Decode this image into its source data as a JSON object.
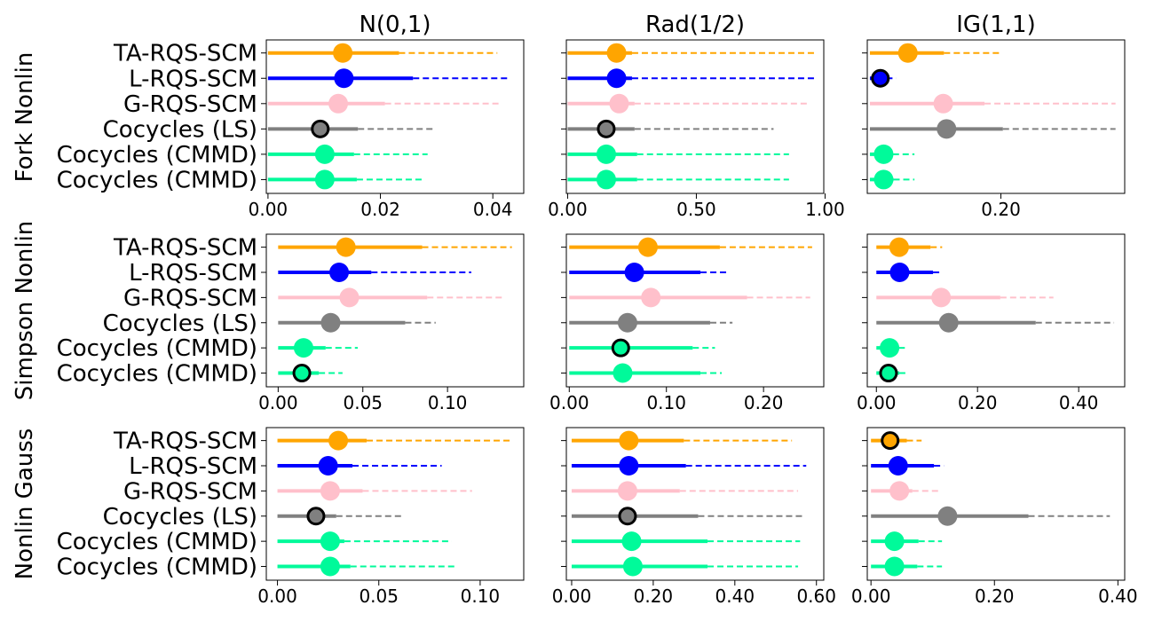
{
  "chart_data": {
    "type": "forest",
    "methods": [
      "TA-RQS-SCM",
      "L-RQS-SCM",
      "G-RQS-SCM",
      "Cocycles (LS)",
      "Cocycles (CMMD)",
      "Cocycles (CMMD)"
    ],
    "method_colors": [
      "#FFA500",
      "#0000FF",
      "#FFC0CB",
      "#808080",
      "#00FA9A",
      "#00FA9A"
    ],
    "columns": [
      "N(0,1)",
      "Rad(1/2)",
      "IG(1,1)"
    ],
    "rows": [
      {
        "label": "Fork Nonlin",
        "panels": [
          {
            "xlim": [
              -0.0003,
              0.0455
            ],
            "ticks": [
              0.0,
              0.02,
              0.04
            ],
            "tick_labels": [
              "0.00",
              "0.02",
              "0.04"
            ],
            "points": [
              {
                "med": 0.0133,
                "q75": 0.0233,
                "max": 0.0408,
                "bold": false
              },
              {
                "med": 0.0135,
                "q75": 0.0258,
                "max": 0.043,
                "bold": false
              },
              {
                "med": 0.0125,
                "q75": 0.0208,
                "max": 0.0413,
                "bold": false
              },
              {
                "med": 0.0093,
                "q75": 0.016,
                "max": 0.0297,
                "bold": true
              },
              {
                "med": 0.0101,
                "q75": 0.0153,
                "max": 0.0284,
                "bold": false
              },
              {
                "med": 0.0101,
                "q75": 0.0158,
                "max": 0.0278,
                "bold": false
              }
            ]
          },
          {
            "xlim": [
              -0.005,
              0.995
            ],
            "ticks": [
              0.0,
              0.5,
              1.0
            ],
            "tick_labels": [
              "0.00",
              "0.50",
              "1.00"
            ],
            "points": [
              {
                "med": 0.19,
                "q75": 0.25,
                "max": 0.96,
                "bold": false
              },
              {
                "med": 0.19,
                "q75": 0.25,
                "max": 0.96,
                "bold": false
              },
              {
                "med": 0.2,
                "q75": 0.26,
                "max": 0.94,
                "bold": false
              },
              {
                "med": 0.15,
                "q75": 0.26,
                "max": 0.8,
                "bold": true
              },
              {
                "med": 0.15,
                "q75": 0.27,
                "max": 0.86,
                "bold": false
              },
              {
                "med": 0.15,
                "q75": 0.27,
                "max": 0.86,
                "bold": false
              }
            ]
          },
          {
            "xlim": [
              -0.004,
              0.389
            ],
            "ticks": [
              0.2
            ],
            "tick_labels": [
              "0.20"
            ],
            "points": [
              {
                "med": 0.058,
                "q75": 0.113,
                "max": 0.2,
                "bold": false
              },
              {
                "med": 0.016,
                "q75": 0.025,
                "max": 0.04,
                "bold": true
              },
              {
                "med": 0.112,
                "q75": 0.175,
                "max": 0.375,
                "bold": false
              },
              {
                "med": 0.117,
                "q75": 0.203,
                "max": 0.375,
                "bold": false
              },
              {
                "med": 0.021,
                "q75": 0.035,
                "max": 0.068,
                "bold": false
              },
              {
                "med": 0.021,
                "q75": 0.036,
                "max": 0.068,
                "bold": false
              }
            ]
          }
        ]
      },
      {
        "label": "Simpson Nonlin",
        "panels": [
          {
            "xlim": [
              -0.007,
              0.145
            ],
            "ticks": [
              0.0,
              0.05,
              0.1
            ],
            "tick_labels": [
              "0.00",
              "0.05",
              "0.10"
            ],
            "points": [
              {
                "med": 0.04,
                "q75": 0.085,
                "max": 0.138,
                "bold": false
              },
              {
                "med": 0.036,
                "q75": 0.055,
                "max": 0.114,
                "bold": false
              },
              {
                "med": 0.042,
                "q75": 0.088,
                "max": 0.133,
                "bold": false
              },
              {
                "med": 0.031,
                "q75": 0.075,
                "max": 0.093,
                "bold": false
              },
              {
                "med": 0.015,
                "q75": 0.028,
                "max": 0.047,
                "bold": false
              },
              {
                "med": 0.014,
                "q75": 0.024,
                "max": 0.038,
                "bold": true
              }
            ]
          },
          {
            "xlim": [
              -0.003,
              0.262
            ],
            "ticks": [
              0.0,
              0.1,
              0.2
            ],
            "tick_labels": [
              "0.00",
              "0.10",
              "0.20"
            ],
            "points": [
              {
                "med": 0.081,
                "q75": 0.155,
                "max": 0.25,
                "bold": false
              },
              {
                "med": 0.067,
                "q75": 0.135,
                "max": 0.162,
                "bold": false
              },
              {
                "med": 0.084,
                "q75": 0.183,
                "max": 0.248,
                "bold": false
              },
              {
                "med": 0.06,
                "q75": 0.145,
                "max": 0.168,
                "bold": false
              },
              {
                "med": 0.053,
                "q75": 0.127,
                "max": 0.15,
                "bold": true
              },
              {
                "med": 0.055,
                "q75": 0.135,
                "max": 0.157,
                "bold": false
              }
            ]
          },
          {
            "xlim": [
              -0.018,
              0.491
            ],
            "ticks": [
              0.0,
              0.2,
              0.4
            ],
            "tick_labels": [
              "0.00",
              "0.20",
              "0.40"
            ],
            "points": [
              {
                "med": 0.045,
                "q75": 0.107,
                "max": 0.13,
                "bold": false
              },
              {
                "med": 0.046,
                "q75": 0.112,
                "max": 0.125,
                "bold": false
              },
              {
                "med": 0.128,
                "q75": 0.245,
                "max": 0.35,
                "bold": false
              },
              {
                "med": 0.143,
                "q75": 0.315,
                "max": 0.47,
                "bold": false
              },
              {
                "med": 0.026,
                "q75": 0.044,
                "max": 0.06,
                "bold": false
              },
              {
                "med": 0.024,
                "q75": 0.045,
                "max": 0.058,
                "bold": true
              }
            ]
          }
        ]
      },
      {
        "label": "Nonlin Gauss",
        "panels": [
          {
            "xlim": [
              -0.0055,
              0.1215
            ],
            "ticks": [
              0.0,
              0.05,
              0.1
            ],
            "tick_labels": [
              "0.00",
              "0.05",
              "0.10"
            ],
            "points": [
              {
                "med": 0.03,
                "q75": 0.044,
                "max": 0.116,
                "bold": false
              },
              {
                "med": 0.025,
                "q75": 0.037,
                "max": 0.081,
                "bold": false
              },
              {
                "med": 0.026,
                "q75": 0.042,
                "max": 0.096,
                "bold": false
              },
              {
                "med": 0.019,
                "q75": 0.029,
                "max": 0.061,
                "bold": true
              },
              {
                "med": 0.026,
                "q75": 0.033,
                "max": 0.086,
                "bold": false
              },
              {
                "med": 0.026,
                "q75": 0.036,
                "max": 0.088,
                "bold": false
              }
            ]
          },
          {
            "xlim": [
              -0.013,
              0.618
            ],
            "ticks": [
              0.0,
              0.2,
              0.4,
              0.6
            ],
            "tick_labels": [
              "0.00",
              "0.20",
              "0.40",
              "0.60"
            ],
            "points": [
              {
                "med": 0.14,
                "q75": 0.275,
                "max": 0.54,
                "bold": false
              },
              {
                "med": 0.14,
                "q75": 0.28,
                "max": 0.575,
                "bold": false
              },
              {
                "med": 0.137,
                "q75": 0.265,
                "max": 0.555,
                "bold": false
              },
              {
                "med": 0.137,
                "q75": 0.31,
                "max": 0.565,
                "bold": true
              },
              {
                "med": 0.147,
                "q75": 0.333,
                "max": 0.56,
                "bold": false
              },
              {
                "med": 0.15,
                "q75": 0.333,
                "max": 0.555,
                "bold": false
              }
            ]
          },
          {
            "xlim": [
              -0.006,
              0.411
            ],
            "ticks": [
              0.0,
              0.2,
              0.4
            ],
            "tick_labels": [
              "0.00",
              "0.20",
              "0.40"
            ],
            "points": [
              {
                "med": 0.031,
                "q75": 0.058,
                "max": 0.082,
                "bold": true
              },
              {
                "med": 0.044,
                "q75": 0.102,
                "max": 0.118,
                "bold": false
              },
              {
                "med": 0.046,
                "q75": 0.067,
                "max": 0.11,
                "bold": false
              },
              {
                "med": 0.124,
                "q75": 0.255,
                "max": 0.387,
                "bold": false
              },
              {
                "med": 0.038,
                "q75": 0.077,
                "max": 0.115,
                "bold": false
              },
              {
                "med": 0.038,
                "q75": 0.075,
                "max": 0.115,
                "bold": false
              }
            ]
          }
        ]
      }
    ]
  }
}
